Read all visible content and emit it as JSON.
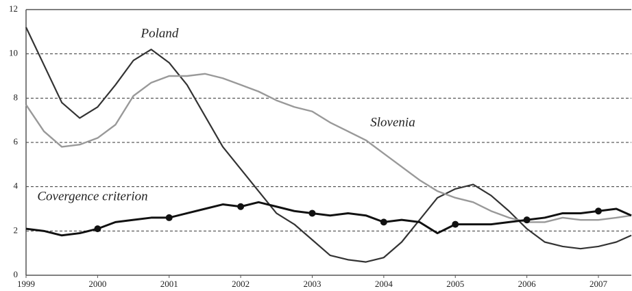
{
  "chart_data": {
    "type": "line",
    "x": [
      1999,
      1999.25,
      1999.5,
      1999.75,
      2000,
      2000.25,
      2000.5,
      2000.75,
      2001,
      2001.25,
      2001.5,
      2001.75,
      2002,
      2002.25,
      2002.5,
      2002.75,
      2003,
      2003.25,
      2003.5,
      2003.75,
      2004,
      2004.25,
      2004.5,
      2004.75,
      2005,
      2005.25,
      2005.5,
      2005.75,
      2006,
      2006.25,
      2006.5,
      2006.75,
      2007,
      2007.25,
      2007.46
    ],
    "series": [
      {
        "name": "Poland",
        "color": "#333333",
        "width": 2.2,
        "values": [
          11.2,
          9.5,
          7.8,
          7.1,
          7.6,
          8.6,
          9.7,
          10.2,
          9.6,
          8.6,
          7.2,
          5.8,
          4.8,
          3.8,
          2.8,
          2.3,
          1.6,
          0.9,
          0.7,
          0.6,
          0.8,
          1.5,
          2.5,
          3.5,
          3.9,
          4.1,
          3.6,
          2.9,
          2.1,
          1.5,
          1.3,
          1.2,
          1.3,
          1.5,
          1.8
        ]
      },
      {
        "name": "Slovenia",
        "color": "#999999",
        "width": 2.4,
        "values": [
          7.7,
          6.5,
          5.8,
          5.9,
          6.2,
          6.8,
          8.1,
          8.7,
          9.0,
          9.0,
          9.1,
          8.9,
          8.6,
          8.3,
          7.9,
          7.6,
          7.4,
          6.9,
          6.5,
          6.1,
          5.5,
          4.9,
          4.3,
          3.8,
          3.5,
          3.3,
          2.9,
          2.6,
          2.4,
          2.4,
          2.6,
          2.5,
          2.5,
          2.6,
          2.7
        ]
      },
      {
        "name": "Covergence criterion",
        "color": "#111111",
        "width": 3,
        "markers": true,
        "values": [
          2.1,
          2.0,
          1.8,
          1.9,
          2.1,
          2.4,
          2.5,
          2.6,
          2.6,
          2.8,
          3.0,
          3.2,
          3.1,
          3.3,
          3.1,
          2.9,
          2.8,
          2.7,
          2.8,
          2.7,
          2.4,
          2.5,
          2.4,
          1.9,
          2.3,
          2.3,
          2.3,
          2.4,
          2.5,
          2.6,
          2.8,
          2.8,
          2.9,
          3.0,
          2.7
        ]
      }
    ],
    "annotations": [
      "Poland",
      "Slovenia",
      "Covergence criterion"
    ],
    "xlim": [
      1999,
      2007.46
    ],
    "xticks": [
      1999,
      2000,
      2001,
      2002,
      2003,
      2004,
      2005,
      2006,
      2007
    ],
    "ylim": [
      0,
      12
    ],
    "yticks": [
      0,
      2,
      4,
      6,
      8,
      10,
      12
    ],
    "grid": true
  }
}
